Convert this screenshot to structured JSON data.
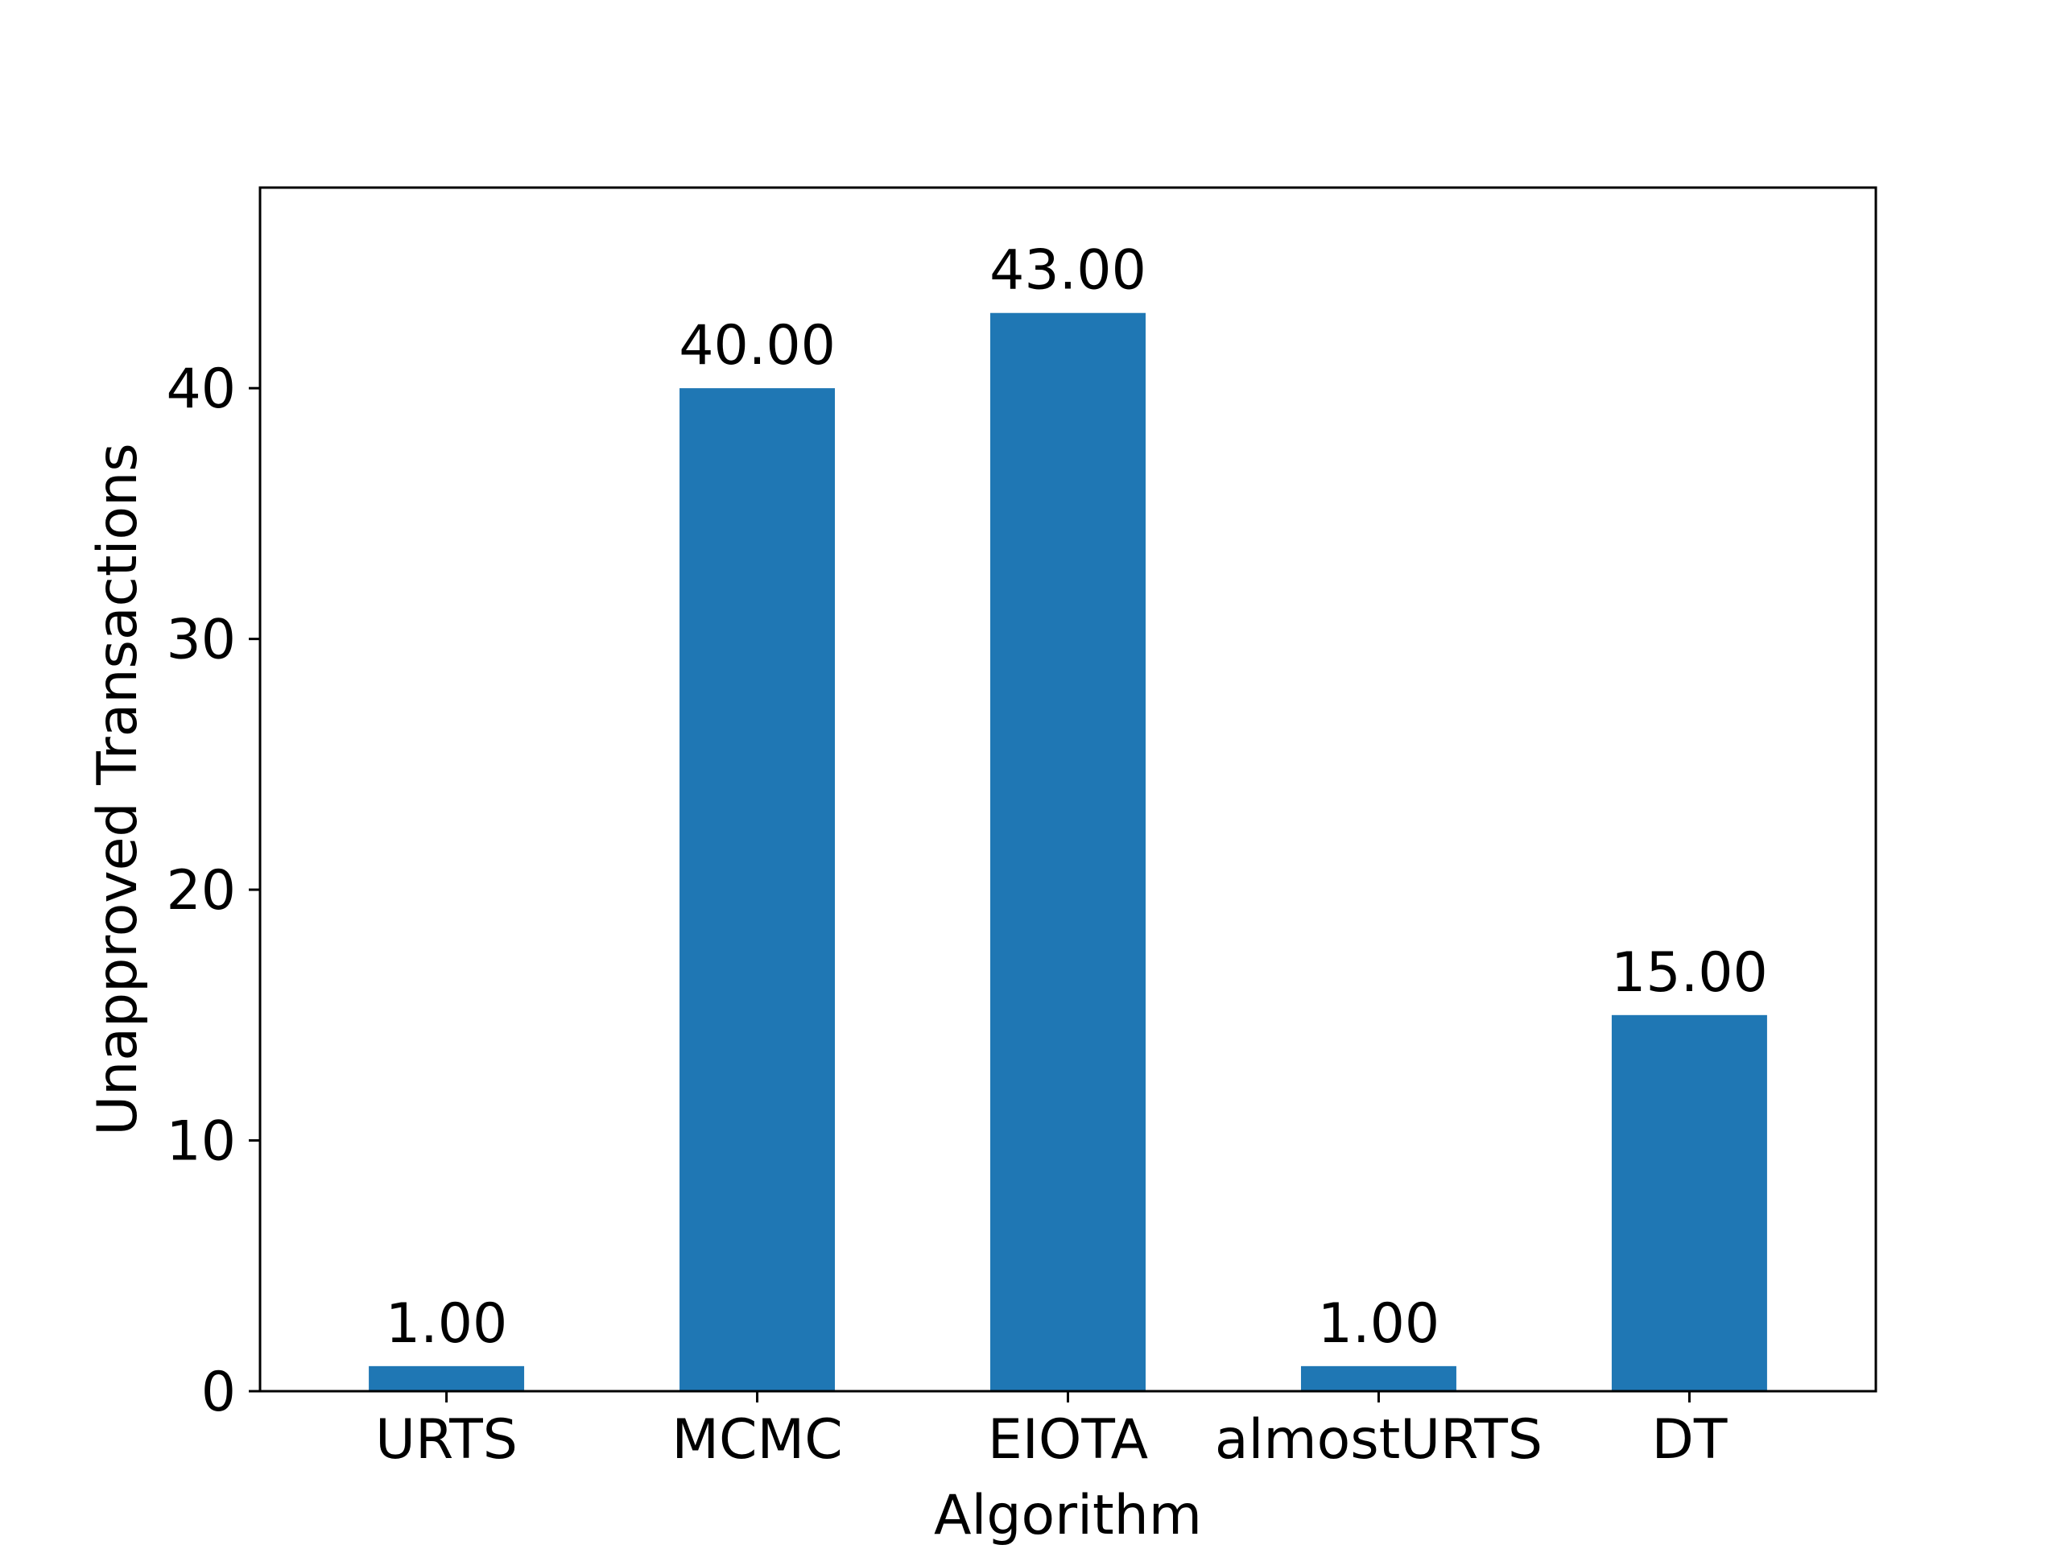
{
  "chart_data": {
    "type": "bar",
    "title": "",
    "xlabel": "Algorithm",
    "ylabel": "Unapproved Transactions",
    "categories": [
      "URTS",
      "MCMC",
      "EIOTA",
      "almostURTS",
      "DT"
    ],
    "values": [
      1,
      40,
      43,
      1,
      15
    ],
    "value_labels": [
      "1.00",
      "40.00",
      "43.00",
      "1.00",
      "15.00"
    ],
    "ylim": [
      0,
      48
    ],
    "yticks": [
      0,
      10,
      20,
      30,
      40
    ],
    "ytick_labels": [
      "0",
      "10",
      "20",
      "30",
      "40"
    ],
    "bar_color": "#1f77b4",
    "grid": false,
    "legend": "none"
  }
}
